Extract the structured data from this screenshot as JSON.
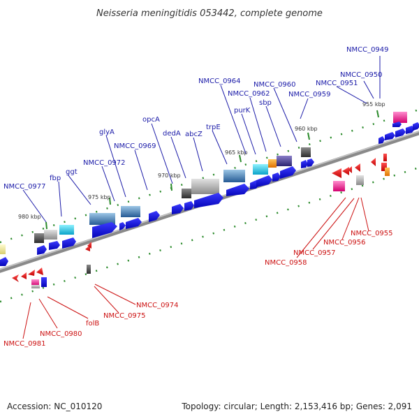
{
  "header": {
    "title": "Neisseria meningitidis 053442, complete genome"
  },
  "footer": {
    "accession": "Accession: NC_010120",
    "summary": "Topology: circular; Length: 2,153,416 bp; Genes: 2,091"
  },
  "scale_ticks": [
    "955 kbp",
    "960 kbp",
    "965 kbp",
    "970 kbp",
    "975 kbp",
    "980 kbp"
  ],
  "colors": {
    "forward_label": "#1a1aa8",
    "reverse_label": "#cc1111",
    "backbone": "#7a7a7a",
    "forward_arrow": "#1010e0",
    "reverse_arrow": "#ee1111",
    "tick": "#2a8a2a"
  },
  "forward_genes": [
    "NMCC_0949",
    "NMCC_0950",
    "NMCC_0951",
    "NMCC_0959",
    "NMCC_0960",
    "sbp",
    "NMCC_0962",
    "purK",
    "NMCC_0964",
    "trpE",
    "abcZ",
    "dedA",
    "opcA",
    "NMCC_0969",
    "glyA",
    "NMCC_0972",
    "ggt",
    "fbp",
    "NMCC_0977"
  ],
  "reverse_genes": [
    "NMCC_0955",
    "NMCC_0956",
    "NMCC_0957",
    "NMCC_0958",
    "NMCC_0974",
    "NMCC_0975",
    "folB",
    "NMCC_0980",
    "NMCC_0981"
  ]
}
